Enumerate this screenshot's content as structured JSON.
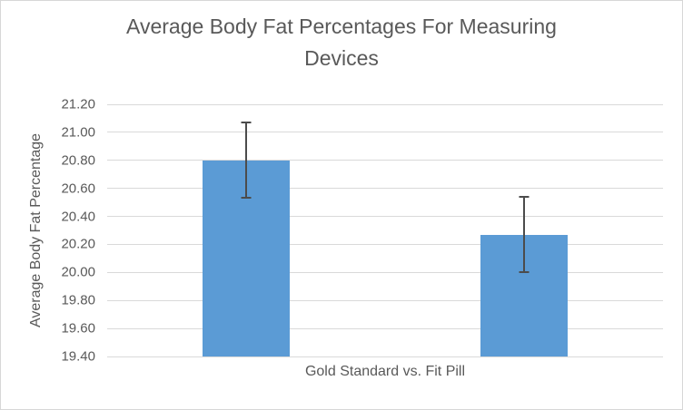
{
  "chart_data": {
    "type": "bar",
    "title": "Average Body Fat Percentages For Measuring Devices",
    "xlabel": "Gold Standard vs. Fit Pill",
    "ylabel": "Average Body Fat Percentage",
    "categories": [
      "Gold Standard",
      "Fit Pill"
    ],
    "values": [
      20.8,
      20.27
    ],
    "error_bars": [
      0.27,
      0.27
    ],
    "ylim": [
      19.4,
      21.2
    ],
    "ytick_step": 0.2,
    "yticks": [
      "21.20",
      "21.00",
      "20.80",
      "20.60",
      "20.40",
      "20.20",
      "20.00",
      "19.80",
      "19.60",
      "19.40"
    ],
    "grid": true,
    "legend": false,
    "colors": {
      "bar": "#5B9BD5",
      "error_bar": "#4C4C4C",
      "gridline": "#D9D9D9",
      "text": "#595959",
      "frame_border": "#D7D7D7",
      "background": "#FFFFFF"
    }
  }
}
